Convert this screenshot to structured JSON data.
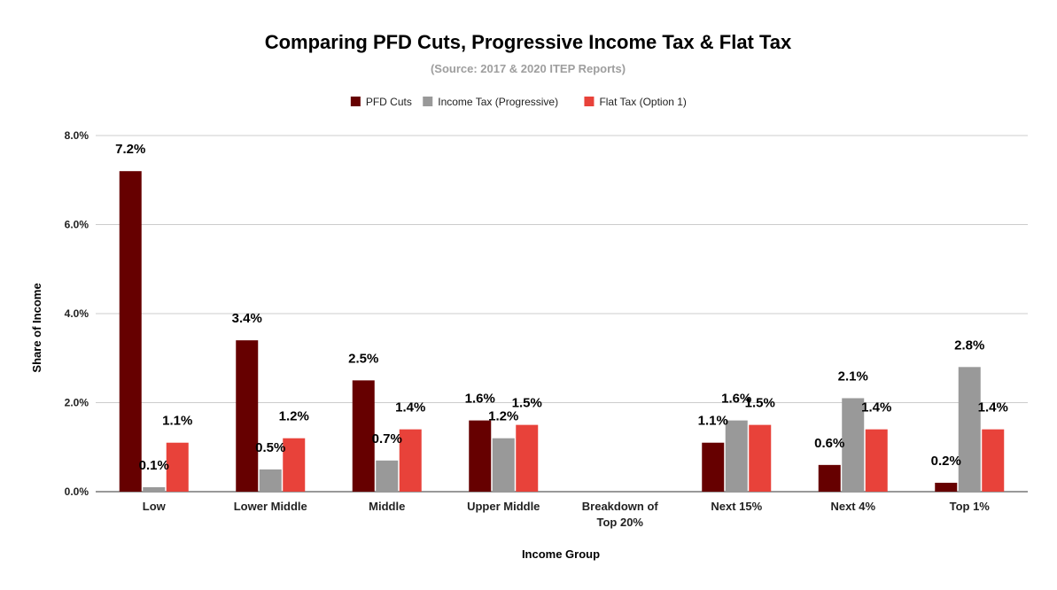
{
  "chart_data": {
    "type": "bar",
    "title": "Comparing PFD Cuts, Progressive Income Tax & Flat Tax",
    "subtitle": "(Source: 2017 & 2020 ITEP Reports)",
    "xlabel": "Income Group",
    "ylabel": "Share of Income",
    "ylim": [
      0,
      8
    ],
    "yticks": [
      0,
      2,
      4,
      6,
      8
    ],
    "ytick_labels": [
      "0.0%",
      "2.0%",
      "4.0%",
      "6.0%",
      "8.0%"
    ],
    "grid": true,
    "legend_position": "top",
    "categories": [
      [
        "Low"
      ],
      [
        "Lower Middle"
      ],
      [
        "Middle"
      ],
      [
        "Upper Middle"
      ],
      [
        "Breakdown of",
        "Top 20%"
      ],
      [
        "Next 15%"
      ],
      [
        "Next 4%"
      ],
      [
        "Top 1%"
      ]
    ],
    "series": [
      {
        "name": "PFD Cuts",
        "color": "#660000",
        "values": [
          7.2,
          3.4,
          2.5,
          1.6,
          null,
          1.1,
          0.6,
          0.2
        ],
        "labels": [
          "7.2%",
          "3.4%",
          "2.5%",
          "1.6%",
          null,
          "1.1%",
          "0.6%",
          "0.2%"
        ]
      },
      {
        "name": "Income Tax (Progressive)",
        "color": "#999999",
        "values": [
          0.1,
          0.5,
          0.7,
          1.2,
          null,
          1.6,
          2.1,
          2.8
        ],
        "labels": [
          "0.1%",
          "0.5%",
          "0.7%",
          "1.2%",
          null,
          "1.6%",
          "2.1%",
          "2.8%"
        ]
      },
      {
        "name": "Flat Tax (Option 1)",
        "color": "#e8423a",
        "values": [
          1.1,
          1.2,
          1.4,
          1.5,
          null,
          1.5,
          1.4,
          1.4
        ],
        "labels": [
          "1.1%",
          "1.2%",
          "1.4%",
          "1.5%",
          null,
          "1.5%",
          "1.4%",
          "1.4%"
        ]
      }
    ]
  }
}
